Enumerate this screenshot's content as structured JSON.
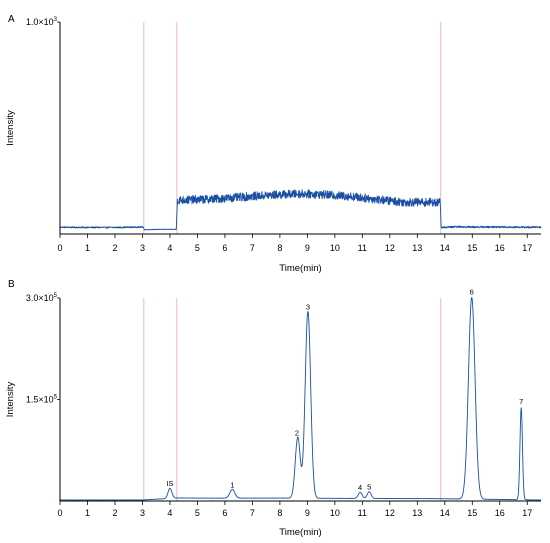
{
  "colors": {
    "trace": "#1a4fa3",
    "marker": "#f4b6bf",
    "axis": "#000000"
  },
  "chart_data": [
    {
      "type": "line",
      "panel_label": "A",
      "xlabel": "Time(min)",
      "ylabel": "Intensity",
      "xlim": [
        0,
        17.5
      ],
      "ylim": [
        0,
        1000
      ],
      "x_ticks": [
        0,
        1,
        2,
        3,
        4,
        5,
        6,
        7,
        8,
        9,
        10,
        11,
        12,
        13,
        14,
        15,
        16,
        17
      ],
      "y_ticks": [
        {
          "value": 1000,
          "mantissa": "1.0×10",
          "exp": "3"
        }
      ],
      "vertical_markers": [
        3.05,
        4.25,
        13.85
      ],
      "series": [
        {
          "noise": 2,
          "points": [
            [
              0,
              32
            ],
            [
              1,
              31
            ],
            [
              2,
              31
            ],
            [
              2.6,
              32
            ],
            [
              3.04,
              33
            ],
            [
              3.06,
              20
            ],
            [
              3.6,
              22
            ],
            [
              4.23,
              22
            ],
            [
              4.27,
              160
            ],
            [
              5,
              162
            ],
            [
              6,
              168
            ],
            [
              7,
              178
            ],
            [
              8,
              186
            ],
            [
              8.8,
              190
            ],
            [
              9.5,
              186
            ],
            [
              10.5,
              178
            ],
            [
              11.5,
              164
            ],
            [
              12.5,
              150
            ],
            [
              13.5,
              150
            ],
            [
              13.83,
              148
            ],
            [
              13.87,
              31
            ],
            [
              14.5,
              34
            ],
            [
              15,
              33
            ],
            [
              15.8,
              33
            ],
            [
              16,
              33
            ],
            [
              17,
              32
            ],
            [
              17.5,
              32
            ]
          ],
          "noise_amp": [
            [
              0,
              3
            ],
            [
              3.05,
              3
            ],
            [
              3.06,
              1
            ],
            [
              4.24,
              1
            ],
            [
              4.27,
              20
            ],
            [
              13.83,
              20
            ],
            [
              13.87,
              4
            ],
            [
              17.5,
              4
            ]
          ]
        }
      ]
    },
    {
      "type": "line",
      "panel_label": "B",
      "xlabel": "Time(min)",
      "ylabel": "Intensity",
      "xlim": [
        0,
        17.5
      ],
      "ylim": [
        0,
        300000
      ],
      "x_ticks": [
        0,
        1,
        2,
        3,
        4,
        5,
        6,
        7,
        8,
        9,
        10,
        11,
        12,
        13,
        14,
        15,
        16,
        17
      ],
      "y_ticks": [
        {
          "value": 300000,
          "mantissa": "3.0×10",
          "exp": "5"
        },
        {
          "value": 150000,
          "mantissa": "1.5×10",
          "exp": "5"
        }
      ],
      "vertical_markers": [
        3.05,
        4.25,
        13.85
      ],
      "series": [
        {
          "noise": 1,
          "baseline": [
            [
              0,
              1500
            ],
            [
              3,
              1500
            ],
            [
              4.3,
              4500
            ],
            [
              5.5,
              4200
            ],
            [
              8.5,
              4300
            ],
            [
              9.5,
              4000
            ],
            [
              13.5,
              3500
            ],
            [
              14.2,
              3200
            ],
            [
              17.5,
              1500
            ]
          ],
          "peaks": [
            {
              "t": 4.0,
              "h": 15000,
              "w": 0.07
            },
            {
              "t": 6.27,
              "h": 13000,
              "w": 0.09
            },
            {
              "t": 8.65,
              "h": 90000,
              "w": 0.09
            },
            {
              "t": 9.02,
              "h": 276000,
              "w": 0.1
            },
            {
              "t": 10.92,
              "h": 9000,
              "w": 0.07
            },
            {
              "t": 11.25,
              "h": 10000,
              "w": 0.07
            },
            {
              "t": 14.98,
              "h": 298000,
              "w": 0.12
            },
            {
              "t": 16.78,
              "h": 136000,
              "w": 0.045
            }
          ],
          "noise_amp": [
            [
              0,
              150
            ],
            [
              17.5,
              150
            ]
          ]
        }
      ],
      "annotations": [
        {
          "text": "IS",
          "x": 4.0,
          "y": 22000
        },
        {
          "text": "1",
          "x": 6.27,
          "y": 20000
        },
        {
          "text": "2",
          "x": 8.62,
          "y": 97000
        },
        {
          "text": "3",
          "x": 9.02,
          "y": 283000
        },
        {
          "text": "4",
          "x": 10.92,
          "y": 16000
        },
        {
          "text": "5",
          "x": 11.25,
          "y": 17000
        },
        {
          "text": "6",
          "x": 14.98,
          "y": 305000
        },
        {
          "text": "7",
          "x": 16.78,
          "y": 143000
        }
      ]
    }
  ]
}
